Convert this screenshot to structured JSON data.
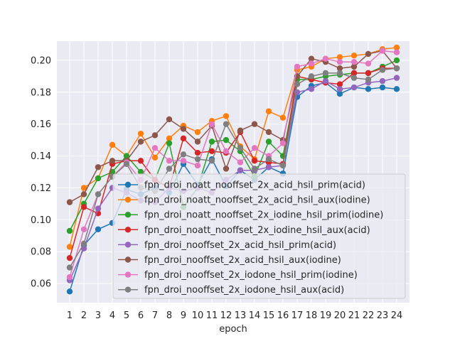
{
  "chart_data": {
    "type": "line",
    "xlabel": "epoch",
    "ylabel": "",
    "title": "",
    "x": [
      1,
      2,
      3,
      4,
      5,
      6,
      7,
      8,
      9,
      10,
      11,
      12,
      13,
      14,
      15,
      16,
      17,
      18,
      19,
      20,
      21,
      22,
      23,
      24
    ],
    "ylim": [
      0.048,
      0.212
    ],
    "yticks": [
      0.06,
      0.08,
      0.1,
      0.12,
      0.14,
      0.16,
      0.18,
      0.2
    ],
    "ytick_labels": [
      "0.06",
      "0.08",
      "0.10",
      "0.12",
      "0.14",
      "0.16",
      "0.18",
      "0.20"
    ],
    "grid": true,
    "legend_position": "lower right",
    "series": [
      {
        "name": "fpn_droi_noatt_nooffset_2x_acid_hsil_prim(acid)",
        "color": "#1f77b4",
        "values": [
          0.055,
          0.084,
          0.094,
          0.098,
          0.119,
          0.116,
          0.12,
          0.117,
          0.135,
          0.122,
          0.138,
          0.121,
          0.131,
          0.125,
          0.133,
          0.129,
          0.177,
          0.184,
          0.186,
          0.179,
          0.183,
          0.182,
          0.183,
          0.182
        ]
      },
      {
        "name": "fpn_droi_noatt_nooffset_2x_acid_hsil_aux(iodine)",
        "color": "#ff7f0e",
        "values": [
          0.083,
          0.12,
          0.126,
          0.147,
          0.14,
          0.154,
          0.139,
          0.151,
          0.159,
          0.155,
          0.162,
          0.165,
          0.146,
          0.138,
          0.168,
          0.164,
          0.194,
          0.196,
          0.201,
          0.202,
          0.203,
          0.204,
          0.207,
          0.208
        ]
      },
      {
        "name": "fpn_droi_noatt_nooffset_2x_iodine_hsil_prim(iodine)",
        "color": "#2ca02c",
        "values": [
          0.093,
          0.11,
          0.126,
          0.13,
          0.14,
          0.13,
          0.125,
          0.148,
          0.108,
          0.12,
          0.149,
          0.15,
          0.143,
          0.127,
          0.149,
          0.14,
          0.188,
          0.188,
          0.19,
          0.191,
          0.192,
          0.192,
          0.196,
          0.2
        ]
      },
      {
        "name": "fpn_droi_noatt_nooffset_2x_iodine_hsil_aux(acid)",
        "color": "#d62728",
        "values": [
          0.076,
          0.108,
          0.104,
          0.135,
          0.137,
          0.137,
          0.125,
          0.12,
          0.151,
          0.142,
          0.143,
          0.142,
          0.155,
          0.137,
          0.136,
          0.135,
          0.19,
          0.188,
          0.186,
          0.185,
          0.192,
          0.192,
          0.195,
          0.195
        ]
      },
      {
        "name": "fpn_droi_nooffset_2x_acid_hsil_prim(acid)",
        "color": "#9467bd",
        "values": [
          0.062,
          0.082,
          0.107,
          0.12,
          0.117,
          0.112,
          0.111,
          0.12,
          0.118,
          0.12,
          0.117,
          0.125,
          0.131,
          0.131,
          0.133,
          0.134,
          0.18,
          0.182,
          0.187,
          0.182,
          0.183,
          0.186,
          0.187,
          0.189
        ]
      },
      {
        "name": "fpn_droi_nooffset_2x_acid_hsil_aux(iodine)",
        "color": "#8c564b",
        "values": [
          0.111,
          0.116,
          0.133,
          0.137,
          0.137,
          0.149,
          0.153,
          0.163,
          0.157,
          0.149,
          0.159,
          0.132,
          0.156,
          0.16,
          0.155,
          0.15,
          0.19,
          0.201,
          0.199,
          0.195,
          0.196,
          0.204,
          0.206,
          0.195
        ]
      },
      {
        "name": "fpn_droi_nooffset_2x_iodone_hsil_prim(iodine)",
        "color": "#e377c2",
        "values": [
          0.064,
          0.094,
          0.116,
          0.127,
          0.136,
          0.125,
          0.145,
          0.137,
          0.137,
          0.134,
          0.16,
          0.143,
          0.136,
          0.145,
          0.14,
          0.148,
          0.196,
          0.198,
          0.201,
          0.199,
          0.199,
          0.198,
          0.206,
          0.205
        ]
      },
      {
        "name": "fpn_droi_nooffset_2x_iodone_hsil_aux(acid)",
        "color": "#7f7f7f",
        "values": [
          0.07,
          0.085,
          0.116,
          0.127,
          0.135,
          0.12,
          0.118,
          0.132,
          0.141,
          0.138,
          0.137,
          0.16,
          0.145,
          0.132,
          0.138,
          0.134,
          0.185,
          0.19,
          0.192,
          0.192,
          0.189,
          0.188,
          0.194,
          0.195
        ]
      }
    ]
  }
}
